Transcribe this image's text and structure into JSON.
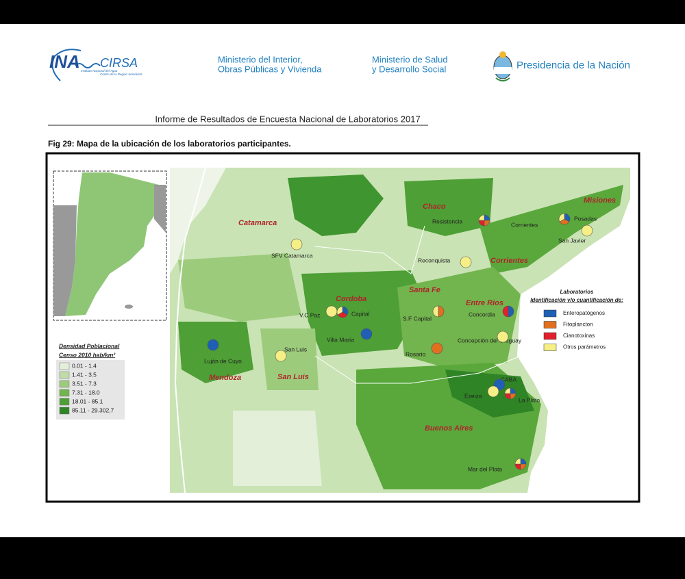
{
  "header": {
    "ina": "INA",
    "cirsa": "CIRSA",
    "ina_sub": "Instituto Nacional del Agua",
    "ina_sub2": "Centro de la Región Semiárida",
    "ministry1": [
      "Ministerio del Interior,",
      "Obras Públicas y Vivienda"
    ],
    "ministry2": [
      "Ministerio de Salud",
      "y Desarrollo Social"
    ],
    "presidency": "Presidencia de la Nación"
  },
  "report_title": "Informe de Resultados de Encuesta Nacional de Laboratorios 2017",
  "figure_caption": "Fig 29: Mapa de la ubicación de los laboratorios participantes.",
  "map": {
    "provinces": [
      "Catamarca",
      "Chaco",
      "Misiones",
      "Corrientes",
      "Santa Fe",
      "Cordoba",
      "Entre Rios",
      "Mendoza",
      "San Luis",
      "Buenos Aires"
    ],
    "labs_legend": {
      "title": "Laboratorios",
      "subtitle": "Identificación y/o cuantificación de:",
      "items": [
        {
          "label": "Enteropatógenos",
          "color": "#1f5fb4"
        },
        {
          "label": "Fitoplancton",
          "color": "#e07020"
        },
        {
          "label": "Cianotoxinas",
          "color": "#e0202a"
        },
        {
          "label": "Otros parámetros",
          "color": "#f6ef86"
        }
      ]
    },
    "density_legend": {
      "title": "Densidad Poblacional",
      "subtitle": "Censo 2010 hab/km²",
      "items": [
        {
          "label": "0.01 - 1.4",
          "color": "#e3efd8"
        },
        {
          "label": "1.41 - 3.5",
          "color": "#bfdca8"
        },
        {
          "label": "3.51 - 7.3",
          "color": "#9ccb7c"
        },
        {
          "label": "7.31 - 18.0",
          "color": "#72b44d"
        },
        {
          "label": "18.01 - 85.1",
          "color": "#4e9f36"
        },
        {
          "label": "85.11 - 29.302,7",
          "color": "#2f8426"
        }
      ]
    },
    "labs": [
      {
        "label": "Resistencia",
        "types": [
          0,
          1,
          2,
          3
        ]
      },
      {
        "label": "Corrientes",
        "types": []
      },
      {
        "label": "Posadas",
        "types": [
          0,
          1,
          3
        ]
      },
      {
        "label": "San Javier",
        "types": [
          3
        ]
      },
      {
        "label": "SFV Catamarca",
        "types": [
          3
        ]
      },
      {
        "label": "Reconquista",
        "types": [
          3
        ]
      },
      {
        "label": "V.C Paz",
        "types": [
          3
        ]
      },
      {
        "label": "Capital",
        "types": [
          0,
          2,
          3
        ]
      },
      {
        "label": "S.F Capital",
        "types": [
          1,
          3
        ]
      },
      {
        "label": "Concordia",
        "types": [
          0,
          2
        ]
      },
      {
        "label": "Villa María",
        "types": [
          0
        ]
      },
      {
        "label": "Concepción del Uruguay",
        "types": [
          3
        ]
      },
      {
        "label": "Rosario",
        "types": [
          1
        ]
      },
      {
        "label": "San Luis",
        "types": [
          3
        ]
      },
      {
        "label": "Luján de Cuyo",
        "types": [
          0
        ]
      },
      {
        "label": "CABA",
        "types": [
          0
        ]
      },
      {
        "label": "Ezeiza",
        "types": [
          3
        ]
      },
      {
        "label": "La Plata",
        "types": [
          0,
          1,
          2,
          3
        ]
      },
      {
        "label": "Mar del Plata",
        "types": [
          0,
          1,
          2,
          3
        ]
      }
    ]
  }
}
